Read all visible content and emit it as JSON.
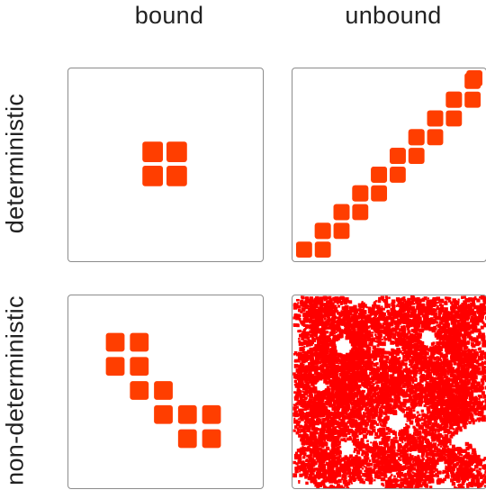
{
  "columns": {
    "bound": "bound",
    "unbound": "unbound"
  },
  "rows": {
    "deterministic": "deterministic",
    "non_deterministic": "non-deterministic"
  },
  "colors": {
    "tile": "#ff3e00",
    "fractal": "#ff0000",
    "panel_border": "#8c8c8c",
    "text": "#222222"
  },
  "panels": {
    "deterministic_bound": {
      "pattern": "2x2 tile block"
    },
    "deterministic_unbound": {
      "pattern": "diagonal staircase of tile pairs"
    },
    "nondeterministic_bound": {
      "pattern": "descending staircase of 2x2 blocks"
    },
    "nondeterministic_unbound": {
      "pattern": "random fractal growth"
    }
  }
}
